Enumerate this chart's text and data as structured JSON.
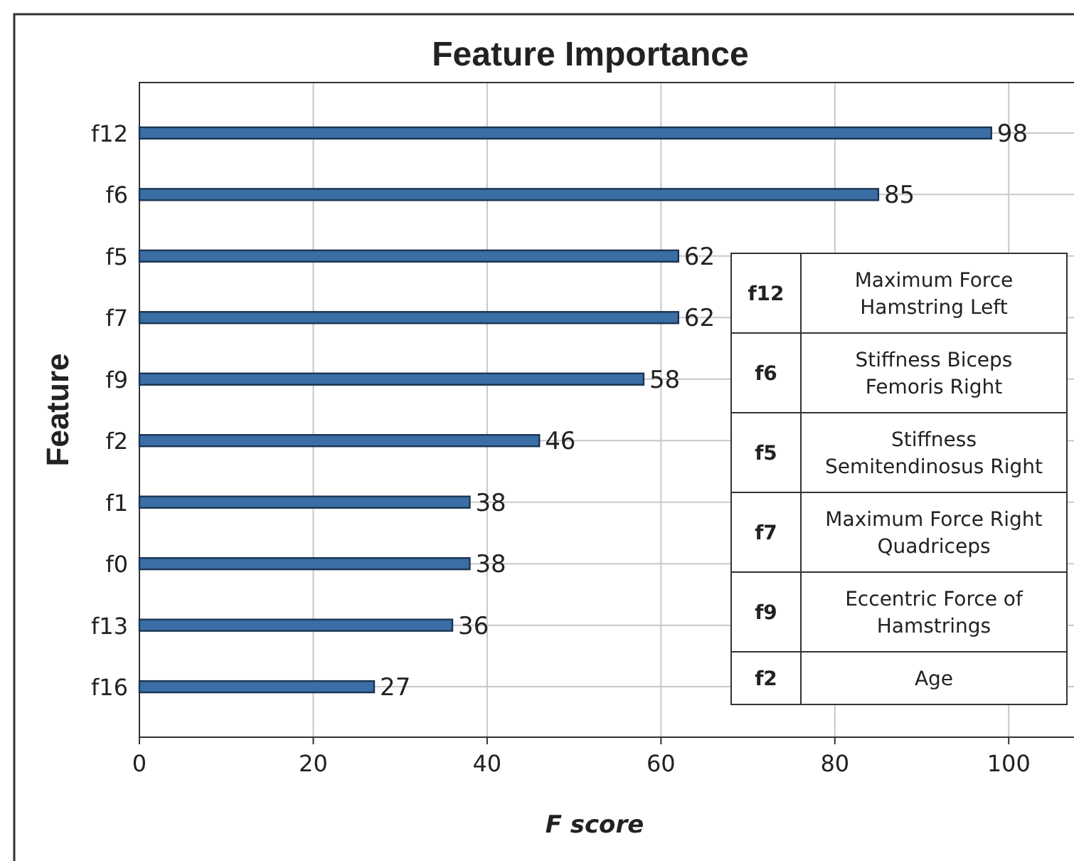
{
  "chart_data": {
    "type": "bar",
    "orientation": "horizontal",
    "title": "Feature Importance",
    "xlabel": "F score",
    "ylabel": "Feature",
    "categories": [
      "f12",
      "f6",
      "f5",
      "f7",
      "f9",
      "f2",
      "f1",
      "f0",
      "f13",
      "f16"
    ],
    "values": [
      98,
      85,
      62,
      62,
      58,
      46,
      38,
      38,
      36,
      27
    ],
    "color": "#3a6ea5",
    "xlim": [
      0,
      108
    ],
    "xticks": [
      0,
      20,
      40,
      60,
      80,
      100
    ],
    "grid": true,
    "data_labels": true,
    "annotations": [
      "f12",
      "Maximum Force Hamstring Left",
      "f6",
      "Stiffness Biceps Femoris Right",
      "f5",
      "Stiffness Semitendinosus Right",
      "f7",
      "Maximum Force Right Quadriceps",
      "f9",
      "Eccentric Force of Hamstrings",
      "f2",
      "Age"
    ]
  }
}
